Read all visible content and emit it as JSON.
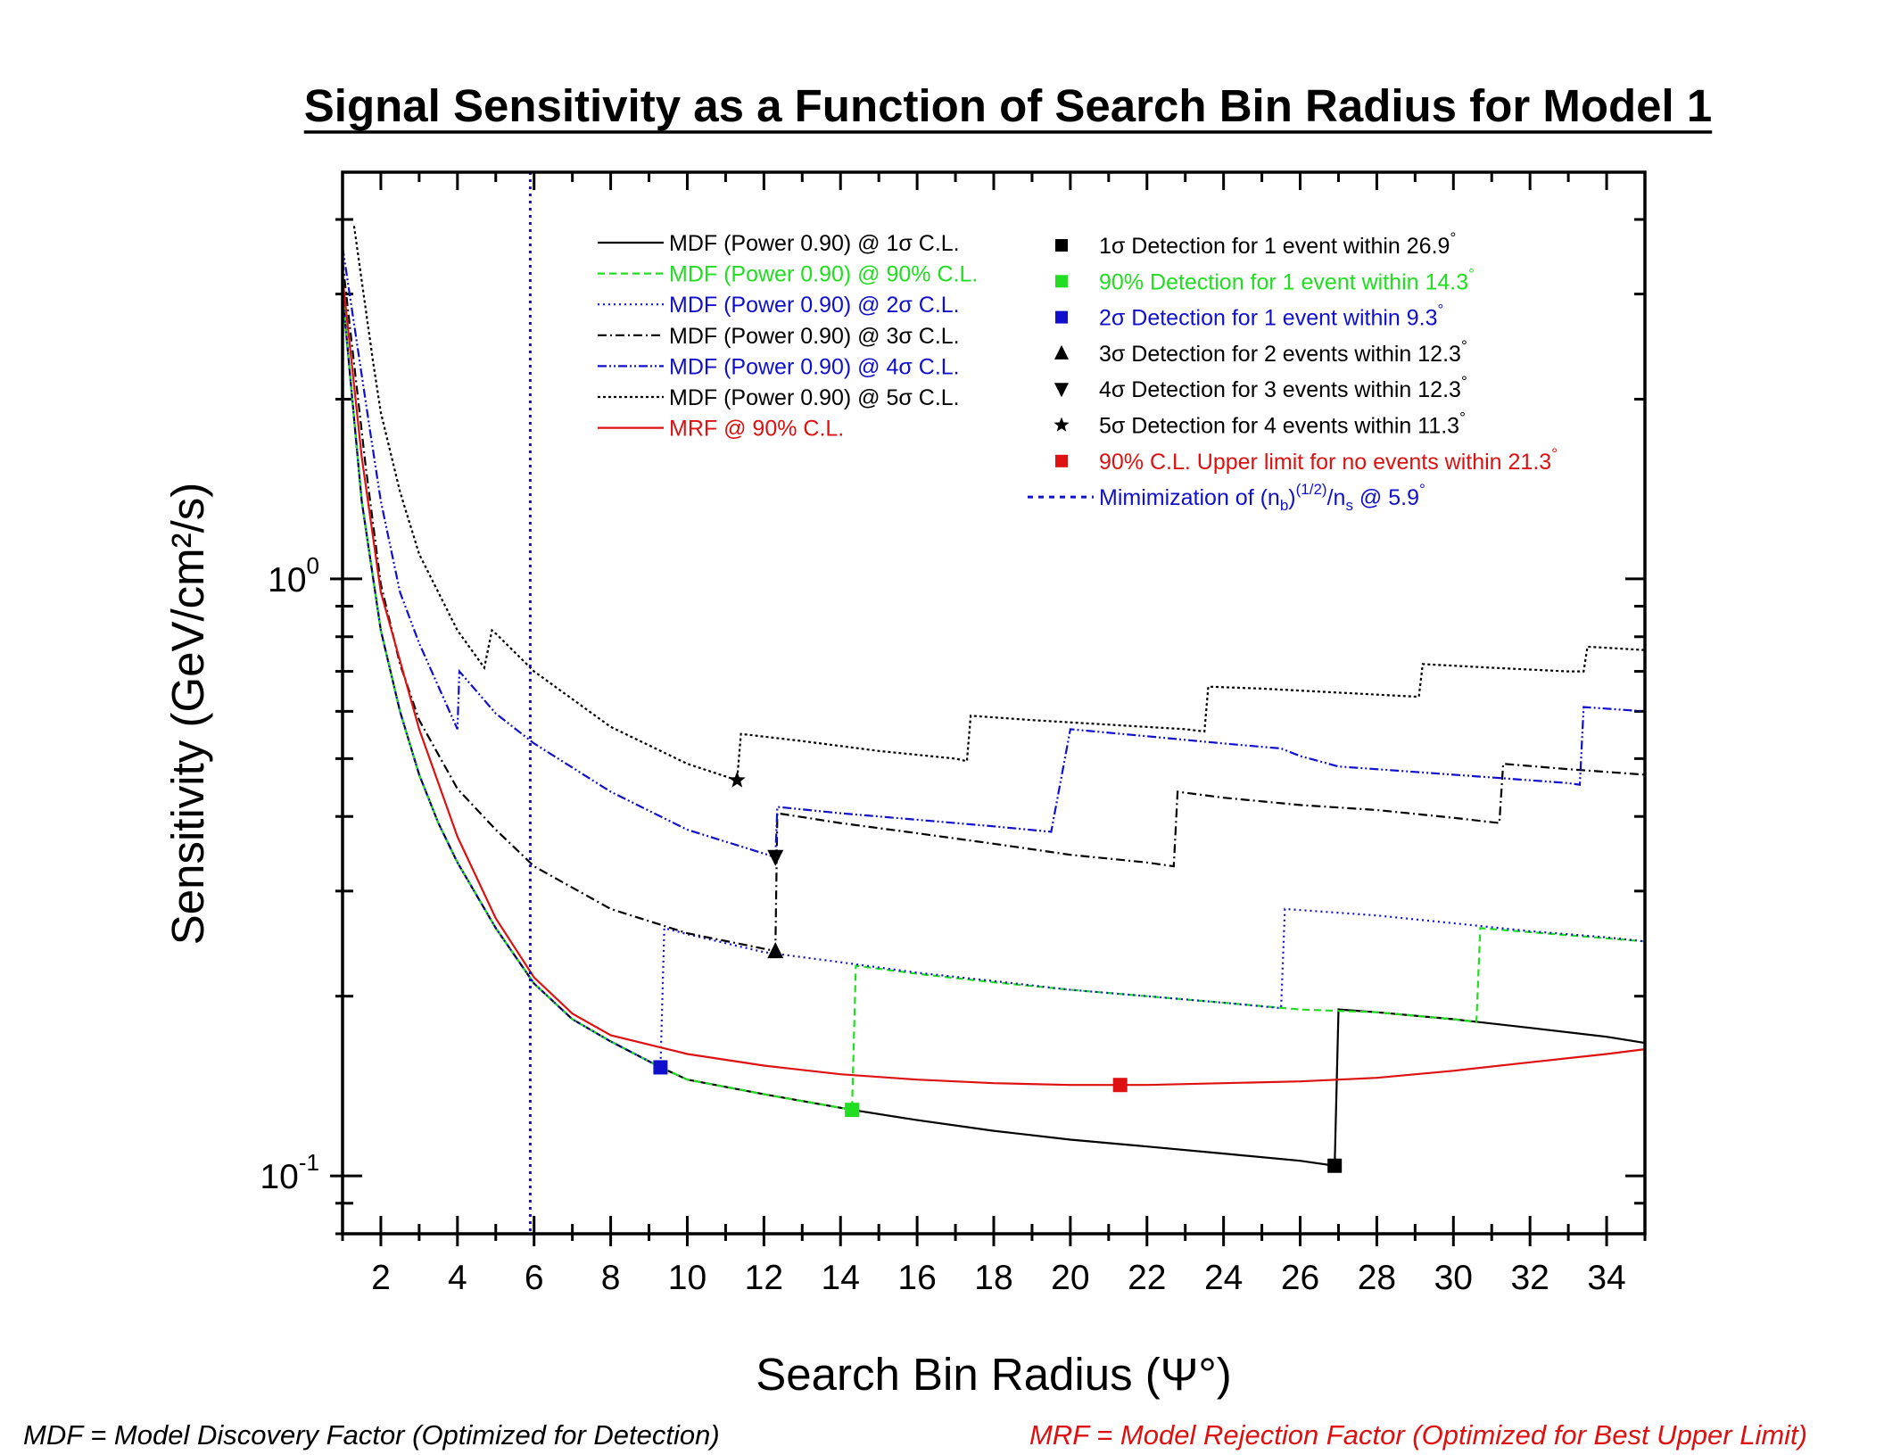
{
  "colors": {
    "black": "#000000",
    "green": "#22dd22",
    "blue": "#1010cc",
    "red": "#dd1111"
  },
  "footnotes": {
    "mdf": "MDF = Model Discovery Factor (Optimized for Detection)",
    "mrf": "MRF = Model Rejection Factor (Optimized for Best Upper Limit)"
  },
  "chart_data": {
    "type": "line",
    "title": "Signal Sensitivity as a Function of Search Bin Radius for Model 1",
    "xlabel": "Search Bin Radius (Ψ°)",
    "ylabel": "Sensitivity (GeV/cm²/s)",
    "xlim": [
      1,
      35
    ],
    "ylim": [
      0.08,
      4.8
    ],
    "yscale": "log",
    "x_ticks": [
      2,
      4,
      6,
      8,
      10,
      12,
      14,
      16,
      18,
      20,
      22,
      24,
      26,
      28,
      30,
      32,
      34
    ],
    "y_ticks": [
      {
        "base": "10",
        "exp": "-1",
        "value": 0.1
      },
      {
        "base": "10",
        "exp": "0",
        "value": 1
      }
    ],
    "legend_position": "top-right",
    "series": [
      {
        "name": "MDF (Power 0.90) @ 1σ C.L.",
        "color": "#000000",
        "dash": "solid",
        "points": [
          [
            1.0,
            3.0
          ],
          [
            1.5,
            1.35
          ],
          [
            2.0,
            0.82
          ],
          [
            2.5,
            0.6
          ],
          [
            3.0,
            0.47
          ],
          [
            3.5,
            0.39
          ],
          [
            4.0,
            0.335
          ],
          [
            5.0,
            0.26
          ],
          [
            6.0,
            0.21
          ],
          [
            7.0,
            0.183
          ],
          [
            8.0,
            0.168
          ],
          [
            9.3,
            0.152
          ],
          [
            10.0,
            0.145
          ],
          [
            12.0,
            0.137
          ],
          [
            14.3,
            0.129
          ],
          [
            16.0,
            0.124
          ],
          [
            18.0,
            0.119
          ],
          [
            20.0,
            0.115
          ],
          [
            22.0,
            0.112
          ],
          [
            24.0,
            0.109
          ],
          [
            26.0,
            0.106
          ],
          [
            26.9,
            0.104
          ],
          [
            27.0,
            0.19
          ],
          [
            28.0,
            0.188
          ],
          [
            30.0,
            0.183
          ],
          [
            32.0,
            0.177
          ],
          [
            34.0,
            0.171
          ],
          [
            35.0,
            0.167
          ]
        ]
      },
      {
        "name": "MDF (Power 0.90) @ 90% C.L.",
        "color": "#22dd22",
        "dash": "8,5",
        "points": [
          [
            1.0,
            3.0
          ],
          [
            1.5,
            1.35
          ],
          [
            2.0,
            0.82
          ],
          [
            2.5,
            0.6
          ],
          [
            3.0,
            0.47
          ],
          [
            3.5,
            0.39
          ],
          [
            4.0,
            0.335
          ],
          [
            5.0,
            0.26
          ],
          [
            6.0,
            0.21
          ],
          [
            7.0,
            0.183
          ],
          [
            8.0,
            0.168
          ],
          [
            9.3,
            0.152
          ],
          [
            10.0,
            0.145
          ],
          [
            12.0,
            0.137
          ],
          [
            14.3,
            0.129
          ],
          [
            14.4,
            0.225
          ],
          [
            16.0,
            0.218
          ],
          [
            18.0,
            0.211
          ],
          [
            20.0,
            0.205
          ],
          [
            22.0,
            0.2
          ],
          [
            24.0,
            0.195
          ],
          [
            26.0,
            0.19
          ],
          [
            28.0,
            0.188
          ],
          [
            30.0,
            0.183
          ],
          [
            30.6,
            0.181
          ],
          [
            30.7,
            0.26
          ],
          [
            32.0,
            0.256
          ],
          [
            34.0,
            0.25
          ],
          [
            35.0,
            0.247
          ]
        ]
      },
      {
        "name": "MDF (Power 0.90) @ 2σ C.L.",
        "color": "#1010cc",
        "dash": "2,4",
        "points": [
          [
            1.0,
            3.0
          ],
          [
            1.5,
            1.35
          ],
          [
            2.0,
            0.82
          ],
          [
            2.5,
            0.6
          ],
          [
            3.0,
            0.47
          ],
          [
            3.5,
            0.39
          ],
          [
            4.0,
            0.335
          ],
          [
            5.0,
            0.26
          ],
          [
            6.0,
            0.21
          ],
          [
            7.0,
            0.183
          ],
          [
            8.0,
            0.168
          ],
          [
            9.3,
            0.152
          ],
          [
            9.4,
            0.26
          ],
          [
            10.0,
            0.254
          ],
          [
            12.0,
            0.237
          ],
          [
            14.0,
            0.228
          ],
          [
            16.0,
            0.219
          ],
          [
            18.0,
            0.212
          ],
          [
            20.0,
            0.205
          ],
          [
            22.0,
            0.2
          ],
          [
            24.0,
            0.195
          ],
          [
            25.5,
            0.191
          ],
          [
            25.6,
            0.28
          ],
          [
            28.0,
            0.273
          ],
          [
            30.0,
            0.265
          ],
          [
            32.0,
            0.257
          ],
          [
            34.0,
            0.251
          ],
          [
            35.0,
            0.247
          ]
        ]
      },
      {
        "name": "MDF (Power 0.90) @ 3σ C.L.",
        "color": "#000000",
        "dash": "10,4,2,4",
        "points": [
          [
            1.0,
            3.4
          ],
          [
            1.6,
            1.55
          ],
          [
            2.0,
            0.98
          ],
          [
            2.5,
            0.72
          ],
          [
            3.0,
            0.58
          ],
          [
            4.0,
            0.445
          ],
          [
            5.0,
            0.38
          ],
          [
            6.0,
            0.33
          ],
          [
            8.0,
            0.28
          ],
          [
            10.0,
            0.255
          ],
          [
            12.3,
            0.238
          ],
          [
            12.35,
            0.405
          ],
          [
            14.0,
            0.39
          ],
          [
            16.0,
            0.375
          ],
          [
            18.0,
            0.36
          ],
          [
            20.0,
            0.345
          ],
          [
            22.0,
            0.335
          ],
          [
            22.7,
            0.33
          ],
          [
            22.8,
            0.44
          ],
          [
            24.0,
            0.43
          ],
          [
            26.0,
            0.418
          ],
          [
            28.0,
            0.41
          ],
          [
            30.0,
            0.398
          ],
          [
            31.2,
            0.39
          ],
          [
            31.3,
            0.49
          ],
          [
            33.0,
            0.48
          ],
          [
            35.0,
            0.47
          ]
        ]
      },
      {
        "name": "MDF (Power 0.90) @ 4σ C.L.",
        "color": "#1010cc",
        "dash": "10,3,2,3,2,3",
        "points": [
          [
            1.0,
            3.6
          ],
          [
            1.7,
            1.8
          ],
          [
            2.0,
            1.35
          ],
          [
            2.5,
            0.95
          ],
          [
            3.0,
            0.78
          ],
          [
            4.0,
            0.56
          ],
          [
            4.05,
            0.7
          ],
          [
            5.0,
            0.595
          ],
          [
            6.0,
            0.53
          ],
          [
            8.0,
            0.44
          ],
          [
            10.0,
            0.38
          ],
          [
            12.3,
            0.342
          ],
          [
            12.35,
            0.415
          ],
          [
            14.0,
            0.405
          ],
          [
            16.0,
            0.395
          ],
          [
            18.0,
            0.385
          ],
          [
            19.5,
            0.377
          ],
          [
            20.0,
            0.56
          ],
          [
            22.0,
            0.545
          ],
          [
            24.0,
            0.53
          ],
          [
            25.5,
            0.52
          ],
          [
            26.0,
            0.505
          ],
          [
            27.0,
            0.485
          ],
          [
            29.0,
            0.475
          ],
          [
            31.0,
            0.465
          ],
          [
            33.0,
            0.455
          ],
          [
            33.3,
            0.452
          ],
          [
            33.4,
            0.61
          ],
          [
            35.0,
            0.6
          ]
        ]
      },
      {
        "name": "MDF (Power 0.90) @ 5σ C.L.",
        "color": "#000000",
        "dash": "3,3",
        "points": [
          [
            1.3,
            3.9
          ],
          [
            1.8,
            2.3
          ],
          [
            2.0,
            1.9
          ],
          [
            2.5,
            1.4
          ],
          [
            3.0,
            1.1
          ],
          [
            4.0,
            0.82
          ],
          [
            4.7,
            0.71
          ],
          [
            4.9,
            0.82
          ],
          [
            5.0,
            0.81
          ],
          [
            6.0,
            0.7
          ],
          [
            8.0,
            0.565
          ],
          [
            10.0,
            0.49
          ],
          [
            11.3,
            0.46
          ],
          [
            11.4,
            0.55
          ],
          [
            13.0,
            0.535
          ],
          [
            15.0,
            0.515
          ],
          [
            17.0,
            0.5
          ],
          [
            17.3,
            0.495
          ],
          [
            17.4,
            0.59
          ],
          [
            19.0,
            0.58
          ],
          [
            21.0,
            0.57
          ],
          [
            23.0,
            0.56
          ],
          [
            23.5,
            0.555
          ],
          [
            23.6,
            0.66
          ],
          [
            25.0,
            0.655
          ],
          [
            27.0,
            0.645
          ],
          [
            29.0,
            0.635
          ],
          [
            29.1,
            0.635
          ],
          [
            29.2,
            0.72
          ],
          [
            31.0,
            0.71
          ],
          [
            33.0,
            0.7
          ],
          [
            33.4,
            0.7
          ],
          [
            33.5,
            0.77
          ],
          [
            35.0,
            0.76
          ]
        ]
      },
      {
        "name": "MRF @ 90% C.L.",
        "color": "#dd1111",
        "dash": "solid",
        "points": [
          [
            1.0,
            3.2
          ],
          [
            1.5,
            1.6
          ],
          [
            2.0,
            0.95
          ],
          [
            3.0,
            0.56
          ],
          [
            4.0,
            0.37
          ],
          [
            5.0,
            0.27
          ],
          [
            6.0,
            0.215
          ],
          [
            7.0,
            0.187
          ],
          [
            8.0,
            0.172
          ],
          [
            10.0,
            0.16
          ],
          [
            12.0,
            0.153
          ],
          [
            14.0,
            0.148
          ],
          [
            16.0,
            0.145
          ],
          [
            18.0,
            0.143
          ],
          [
            20.0,
            0.142
          ],
          [
            21.3,
            0.142
          ],
          [
            22.0,
            0.142
          ],
          [
            24.0,
            0.143
          ],
          [
            26.0,
            0.144
          ],
          [
            28.0,
            0.146
          ],
          [
            30.0,
            0.15
          ],
          [
            32.0,
            0.155
          ],
          [
            34.0,
            0.16
          ],
          [
            35.0,
            0.163
          ]
        ]
      }
    ],
    "vertical_lines": [
      {
        "name": "Mimimization of (n_b)^(1/2)/n_s @ 5.9°",
        "x": 5.9,
        "color": "#1010cc",
        "dash": "3,5"
      }
    ],
    "markers": [
      {
        "shape": "square",
        "x": 26.9,
        "y": 0.104,
        "color": "#000000",
        "label": "1σ Detection for 1 event within 26.9°"
      },
      {
        "shape": "square",
        "x": 14.3,
        "y": 0.129,
        "color": "#22dd22",
        "label": "90% Detection for 1 event within 14.3°"
      },
      {
        "shape": "square",
        "x": 9.3,
        "y": 0.152,
        "color": "#1010cc",
        "label": "2σ Detection for 1 event within 9.3°"
      },
      {
        "shape": "triangle-up",
        "x": 12.3,
        "y": 0.238,
        "color": "#000000",
        "label": "3σ Detection for 2 events within 12.3°"
      },
      {
        "shape": "triangle-down",
        "x": 12.3,
        "y": 0.342,
        "color": "#000000",
        "label": "4σ Detection for 3 events within 12.3°"
      },
      {
        "shape": "star",
        "x": 11.3,
        "y": 0.46,
        "color": "#000000",
        "label": "5σ Detection for 4 events within 11.3°"
      },
      {
        "shape": "square",
        "x": 21.3,
        "y": 0.142,
        "color": "#dd1111",
        "label": "90% C.L. Upper limit for no events within 21.3°"
      }
    ]
  }
}
